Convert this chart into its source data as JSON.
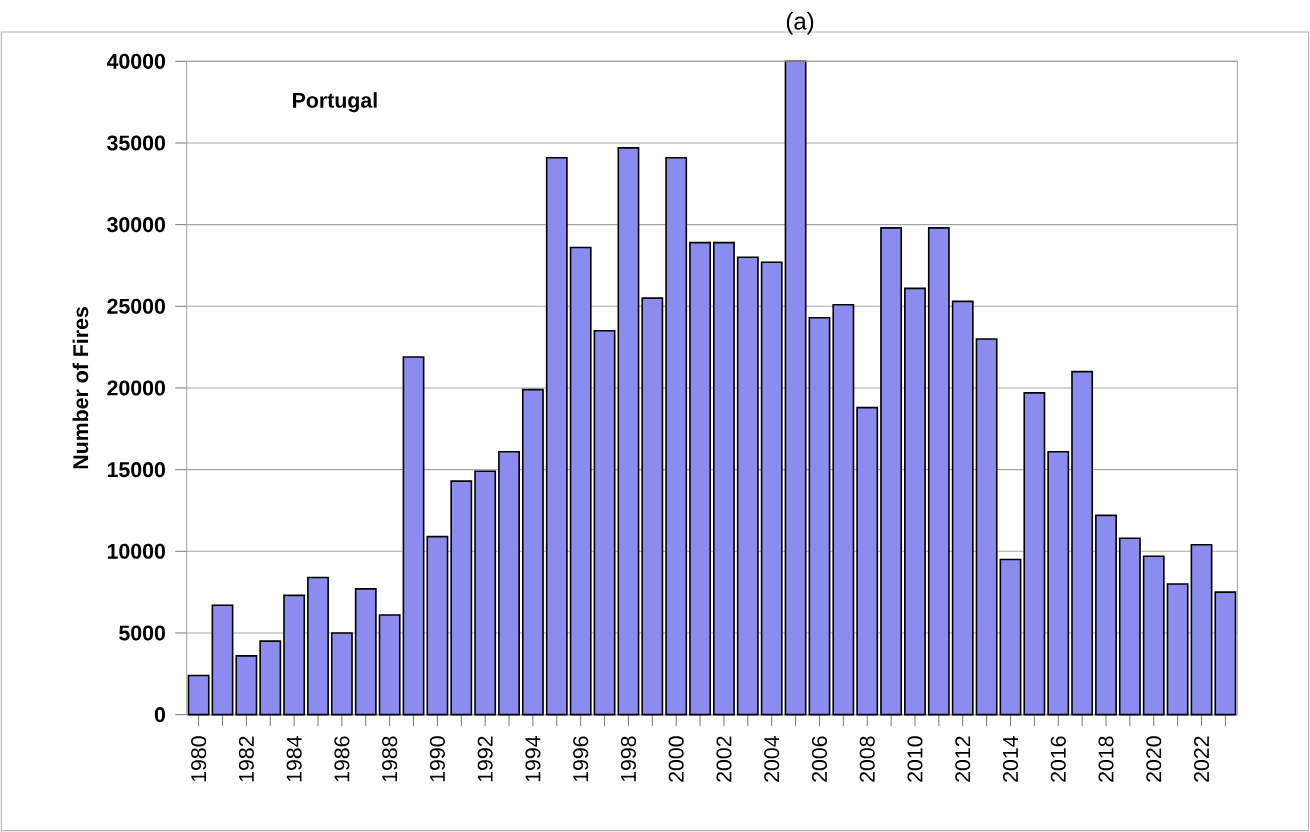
{
  "chart_data": {
    "type": "bar",
    "title": "(a)",
    "ylabel": "Number of Fires",
    "annotations": [
      "Portugal"
    ],
    "categories": [
      "1980",
      null,
      "1982",
      null,
      "1984",
      null,
      "1986",
      null,
      "1988",
      null,
      "1990",
      null,
      "1992",
      null,
      "1994",
      null,
      "1996",
      null,
      "1998",
      null,
      "2000",
      null,
      "2002",
      null,
      "2004",
      null,
      "2006",
      null,
      "2008",
      null,
      "2010",
      null,
      "2012",
      null,
      "2014",
      null,
      "2016",
      null,
      "2018",
      null,
      "2020",
      null,
      "2022",
      null
    ],
    "values": [
      2400,
      6700,
      3600,
      4500,
      7300,
      8400,
      5000,
      7700,
      6100,
      21900,
      10900,
      14300,
      14900,
      16100,
      19900,
      34100,
      28600,
      23500,
      34700,
      25500,
      34100,
      28900,
      28900,
      28000,
      27700,
      40000,
      24300,
      25100,
      18800,
      29800,
      26100,
      29800,
      25300,
      23000,
      9500,
      19700,
      16100,
      21000,
      12200,
      10800,
      9700,
      8000,
      10400,
      7500
    ],
    "color": "#8c8cf0",
    "ylim": [
      0,
      40000
    ],
    "yticks": [
      0,
      5000,
      10000,
      15000,
      20000,
      25000,
      30000,
      35000,
      40000
    ],
    "grid": "y"
  }
}
